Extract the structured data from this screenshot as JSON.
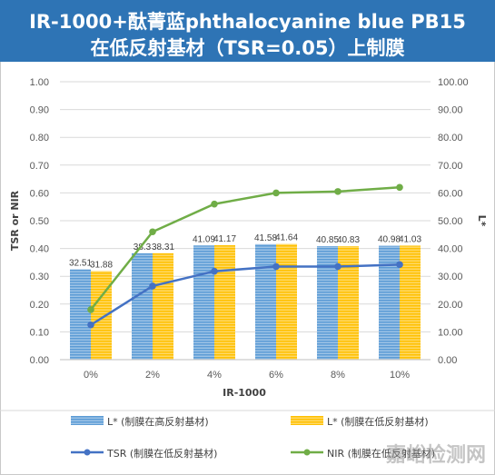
{
  "title": {
    "line1": "IR-1000+酞菁蓝phthalocyanine blue PB15",
    "line2": "在低反射基材（TSR=0.05）上制膜"
  },
  "watermark": "嘉峪检测网",
  "colors": {
    "title_bg": "#2e74b5",
    "bar_high": "#5b9bd5",
    "bar_low": "#ffc000",
    "tsr_line": "#4472c4",
    "nir_line": "#70ad47"
  },
  "chart_data": {
    "type": "bar",
    "categories": [
      "0%",
      "2%",
      "4%",
      "6%",
      "8%",
      "10%"
    ],
    "xlabel": "IR-1000",
    "ylabel_left": "TSR or NIR",
    "ylabel_right": "L*",
    "ylim_left": [
      0,
      1
    ],
    "ylim_right": [
      0,
      100
    ],
    "yticks_left": [
      "0.00",
      "0.10",
      "0.20",
      "0.30",
      "0.40",
      "0.50",
      "0.60",
      "0.70",
      "0.80",
      "0.90",
      "1.00"
    ],
    "yticks_right": [
      "0.00",
      "10.00",
      "20.00",
      "30.00",
      "40.00",
      "50.00",
      "60.00",
      "70.00",
      "80.00",
      "90.00",
      "100.00"
    ],
    "grid": true,
    "legend_position": "bottom",
    "series": [
      {
        "name": "L* (制膜在高反射基材)",
        "type": "bar",
        "axis": "right",
        "values": [
          32.51,
          38.3,
          41.09,
          41.58,
          40.85,
          40.98
        ],
        "labels": [
          "32.51",
          "38.3",
          "41.09",
          "41.58",
          "40.85",
          "40.98"
        ]
      },
      {
        "name": "L* (制膜在低反射基材)",
        "type": "bar",
        "axis": "right",
        "values": [
          31.88,
          38.31,
          41.17,
          41.64,
          40.83,
          41.03
        ],
        "labels": [
          "31.88",
          "38.31",
          "41.17",
          "41.64",
          "40.83",
          "41.03"
        ]
      },
      {
        "name": "TSR (制膜在低反射基材)",
        "type": "line",
        "axis": "left",
        "values": [
          0.125,
          0.265,
          0.318,
          0.335,
          0.335,
          0.342
        ]
      },
      {
        "name": "NIR (制膜在低反射基材)",
        "type": "line",
        "axis": "left",
        "values": [
          0.18,
          0.46,
          0.56,
          0.6,
          0.605,
          0.62
        ]
      }
    ]
  }
}
